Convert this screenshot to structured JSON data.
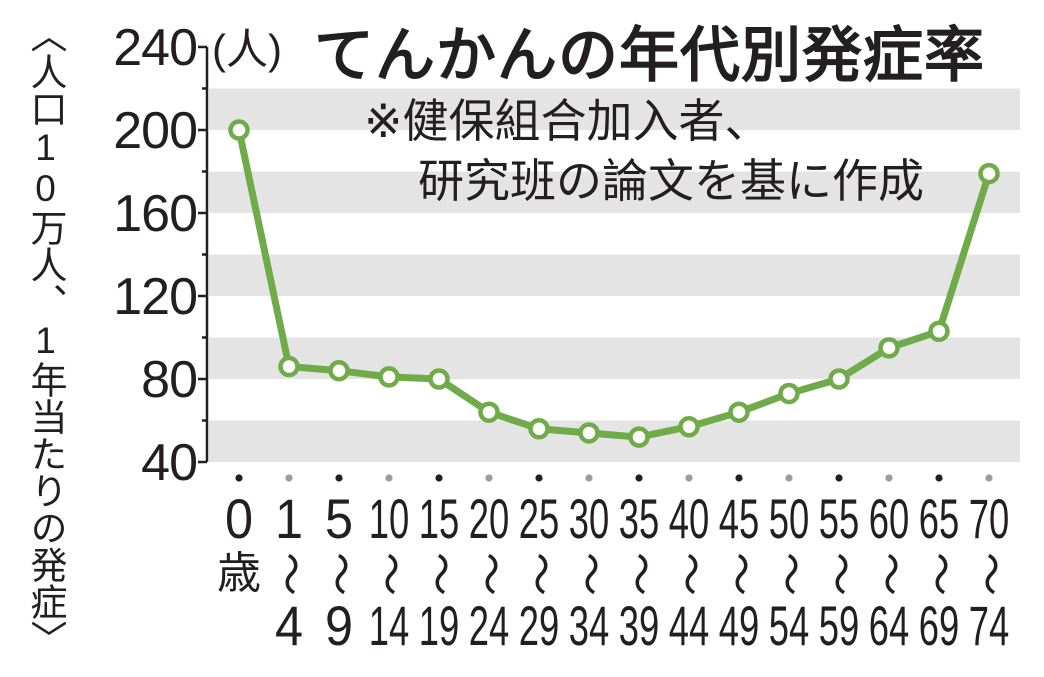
{
  "chart_data": {
    "type": "line",
    "title": "てんかんの年代別発症率",
    "ylabel": "〈人口10万人、1年当たりの発症〉",
    "yunit": "(人)",
    "note": [
      "※健保組合加入者、",
      "研究班の論文を基に作成"
    ],
    "categories": [
      "0歳",
      "1〜4",
      "5〜9",
      "10〜14",
      "15〜19",
      "20〜24",
      "25〜29",
      "30〜34",
      "35〜39",
      "40〜44",
      "45〜49",
      "50〜54",
      "55〜59",
      "60〜64",
      "65〜69",
      "70〜74"
    ],
    "values": [
      200,
      86,
      84,
      81,
      80,
      64,
      56,
      54,
      52,
      57,
      64,
      73,
      80,
      95,
      103,
      179
    ],
    "ylim": [
      40,
      240
    ],
    "yticks": [
      240,
      200,
      160,
      120,
      80,
      40
    ],
    "grid": true,
    "legend": "none"
  },
  "colors": {
    "line": "#6fab48",
    "band": "#e4e4e4",
    "text": "#231f20",
    "dot_alt": "#9c9c9c",
    "background": "#ffffff"
  }
}
